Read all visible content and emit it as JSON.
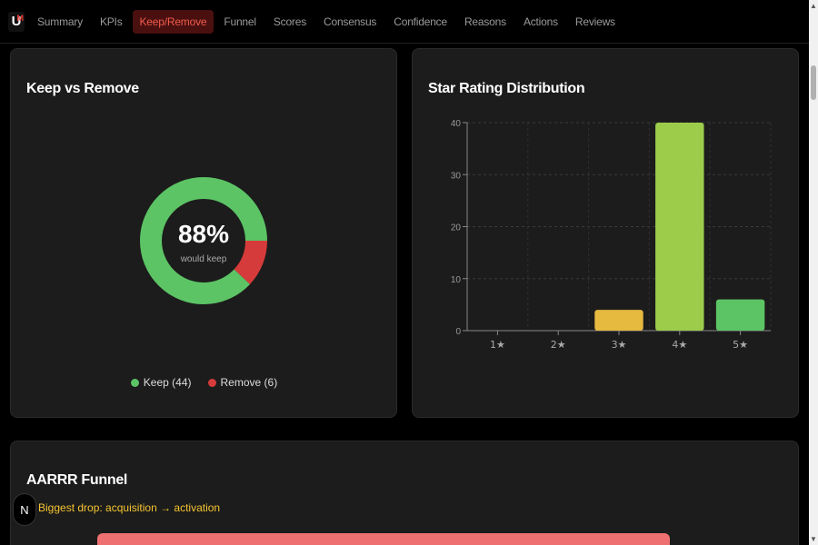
{
  "logo": {
    "letter": "U",
    "mark": "M"
  },
  "nav": {
    "tabs": [
      "Summary",
      "KPIs",
      "Keep/Remove",
      "Funnel",
      "Scores",
      "Consensus",
      "Confidence",
      "Reasons",
      "Actions",
      "Reviews"
    ],
    "active": "Keep/Remove"
  },
  "keep_card": {
    "title": "Keep vs Remove",
    "center_value": "88%",
    "center_label": "would keep",
    "legend": [
      {
        "label": "Keep (44)",
        "color": "#5cc465"
      },
      {
        "label": "Remove (6)",
        "color": "#d63b3b"
      }
    ]
  },
  "chart_data": [
    {
      "type": "pie",
      "categories": [
        "Keep",
        "Remove"
      ],
      "values": [
        44,
        6
      ],
      "colors": [
        "#5cc465",
        "#d63b3b"
      ],
      "title": "Keep vs Remove"
    },
    {
      "type": "bar",
      "title": "Star Rating Distribution",
      "categories": [
        "1★",
        "2★",
        "3★",
        "4★",
        "5★"
      ],
      "values": [
        0,
        0,
        4,
        40,
        6
      ],
      "colors": [
        "#e53935",
        "#ef6c00",
        "#e6b93f",
        "#9ccc4a",
        "#5cc465"
      ],
      "yticks": [
        0,
        10,
        20,
        30,
        40
      ],
      "ylim": [
        0,
        40
      ],
      "grid": true
    }
  ],
  "funnel_card": {
    "title": "AARRR Funnel",
    "biggest_drop": "Biggest drop: acquisition → activation",
    "badge": "N"
  },
  "colors": {
    "accent": "#f15a4a",
    "background": "#000000",
    "card": "#1c1c1c"
  }
}
